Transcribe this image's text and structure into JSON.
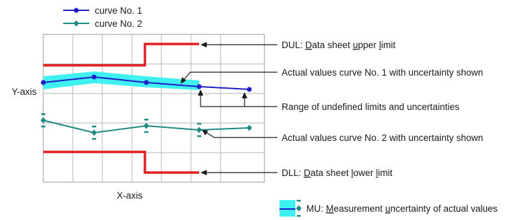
{
  "legend": {
    "curve1": "curve No. 1",
    "curve2": "curve No. 2"
  },
  "axes": {
    "xlabel": "X-axis",
    "ylabel": "Y-axis"
  },
  "annotations": {
    "dul": [
      {
        "t": "DUL: ",
        "u": false
      },
      {
        "t": "D",
        "u": true
      },
      {
        "t": "ata sheet ",
        "u": false
      },
      {
        "t": "u",
        "u": true
      },
      {
        "t": "pper ",
        "u": false
      },
      {
        "t": "l",
        "u": true
      },
      {
        "t": "imit",
        "u": false
      }
    ],
    "actual1": "Actual values curve No. 1 with uncertainty shown",
    "range": "Range of undefined limits and uncertainties",
    "actual2": "Actual values curve No. 2 with uncertainty shown",
    "dll": [
      {
        "t": "DLL: ",
        "u": false
      },
      {
        "t": "D",
        "u": true
      },
      {
        "t": "ata sheet ",
        "u": false
      },
      {
        "t": "l",
        "u": true
      },
      {
        "t": "ower ",
        "u": false
      },
      {
        "t": "l",
        "u": true
      },
      {
        "t": "imit",
        "u": false
      }
    ],
    "mu": [
      {
        "t": "MU: ",
        "u": false
      },
      {
        "t": "M",
        "u": true
      },
      {
        "t": "easurement ",
        "u": false
      },
      {
        "t": "u",
        "u": true
      },
      {
        "t": "ncertainty of actual values",
        "u": false
      }
    ]
  },
  "colors": {
    "curve1": "#1f1fc8",
    "curve2": "#1f8a80",
    "limit": "#e02020",
    "uncertainty": "#3ff0f0",
    "grid": "#9a9a9a",
    "arrow": "#1a1a1a"
  }
}
